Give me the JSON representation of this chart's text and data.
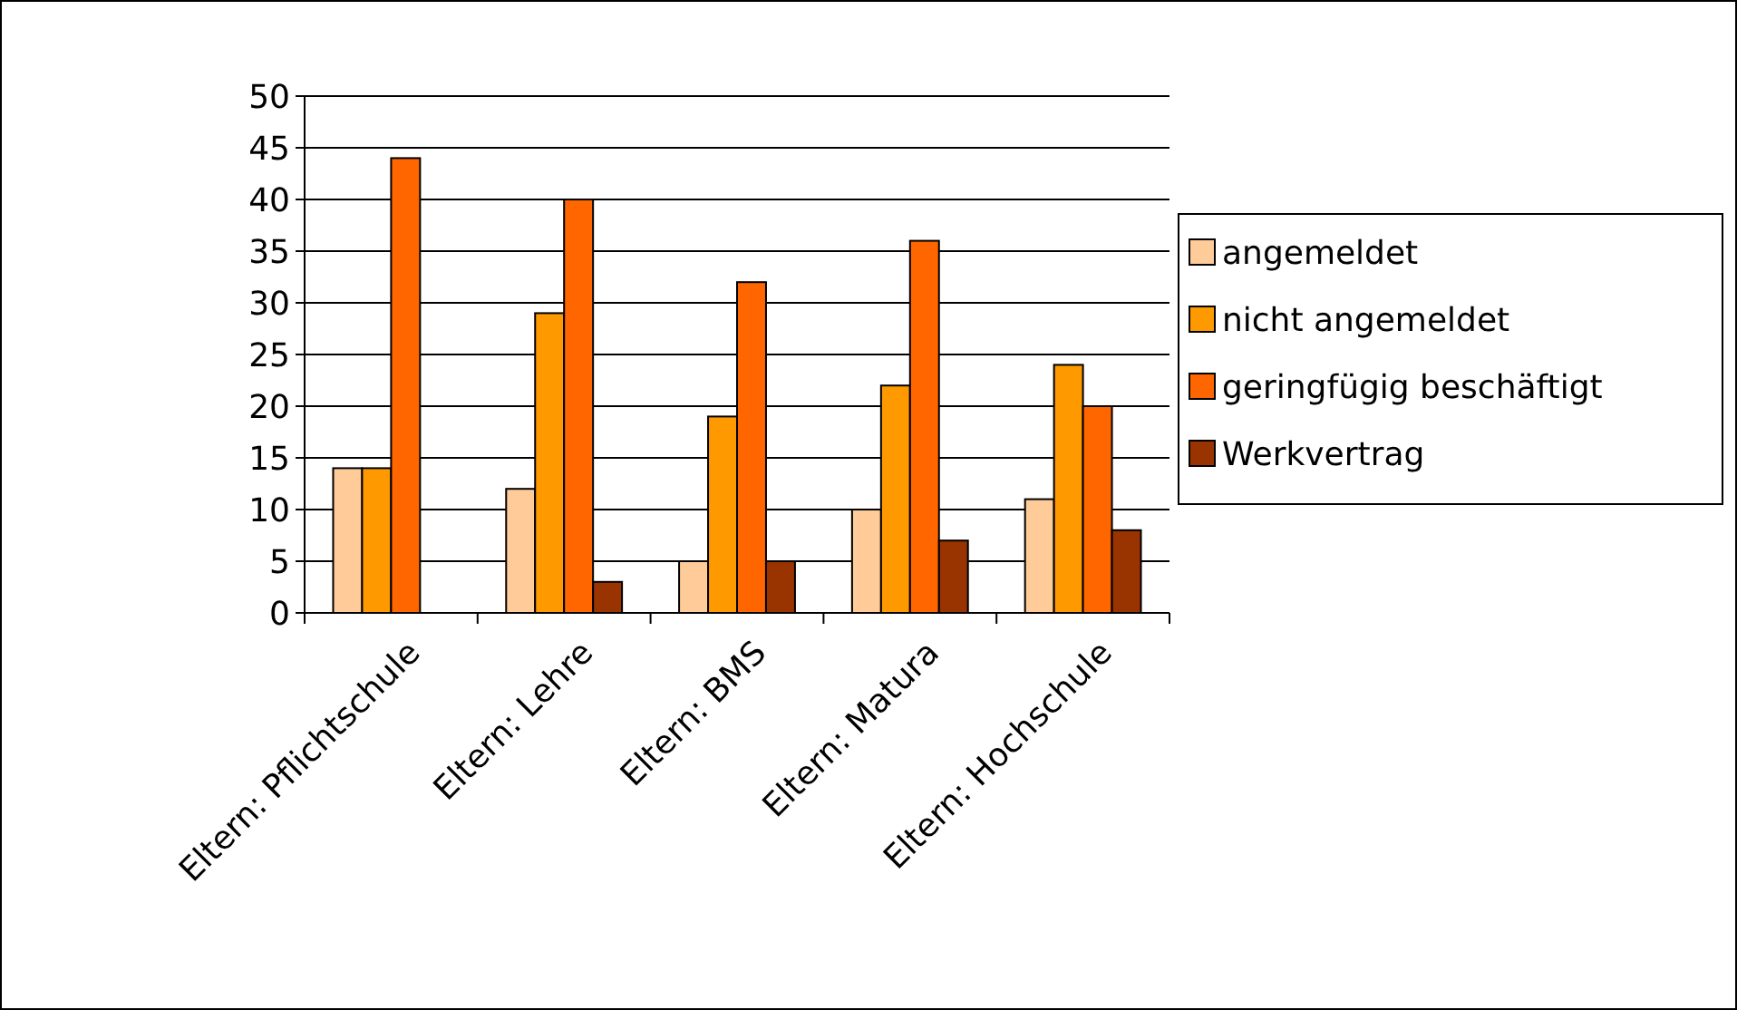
{
  "chart_data": {
    "type": "bar",
    "categories": [
      "Eltern: Pflichtschule",
      "Eltern: Lehre",
      "Eltern: BMS",
      "Eltern: Matura",
      "Eltern: Hochschule"
    ],
    "series": [
      {
        "name": "angemeldet",
        "color": "#ffcc99",
        "values": [
          14,
          12,
          5,
          10,
          11
        ]
      },
      {
        "name": "nicht angemeldet",
        "color": "#ff9900",
        "values": [
          14,
          29,
          19,
          22,
          24
        ]
      },
      {
        "name": "geringfügig beschäftigt",
        "color": "#ff6600",
        "values": [
          44,
          40,
          32,
          36,
          20
        ]
      },
      {
        "name": "Werkvertrag",
        "color": "#993300",
        "values": [
          0,
          3,
          5,
          7,
          8
        ]
      }
    ],
    "ylim": [
      0,
      50
    ],
    "yticks": [
      0,
      5,
      10,
      15,
      20,
      25,
      30,
      35,
      40,
      45,
      50
    ],
    "grid": "y",
    "legend": "right"
  }
}
